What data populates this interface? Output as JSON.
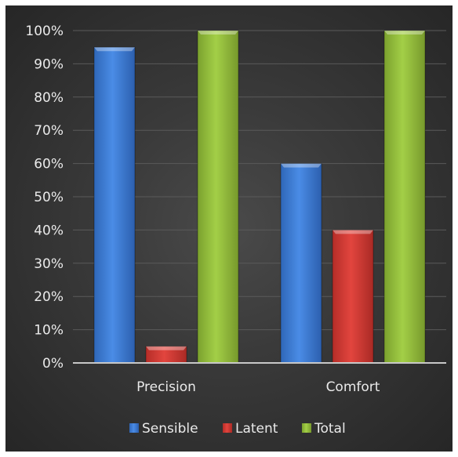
{
  "chart_data": {
    "type": "bar",
    "title": "",
    "xlabel": "",
    "ylabel": "",
    "categories": [
      "Precision",
      "Comfort"
    ],
    "series": [
      {
        "name": "Sensible",
        "values": [
          95,
          60
        ],
        "color": "#3f7fd9"
      },
      {
        "name": "Latent",
        "values": [
          5,
          40
        ],
        "color": "#d93b35"
      },
      {
        "name": "Total",
        "values": [
          100,
          100
        ],
        "color": "#97c43d"
      }
    ],
    "ylim": [
      0,
      100
    ],
    "yticks": [
      "0%",
      "10%",
      "20%",
      "30%",
      "40%",
      "50%",
      "60%",
      "70%",
      "80%",
      "90%",
      "100%"
    ],
    "grid": true,
    "legend_position": "bottom"
  }
}
